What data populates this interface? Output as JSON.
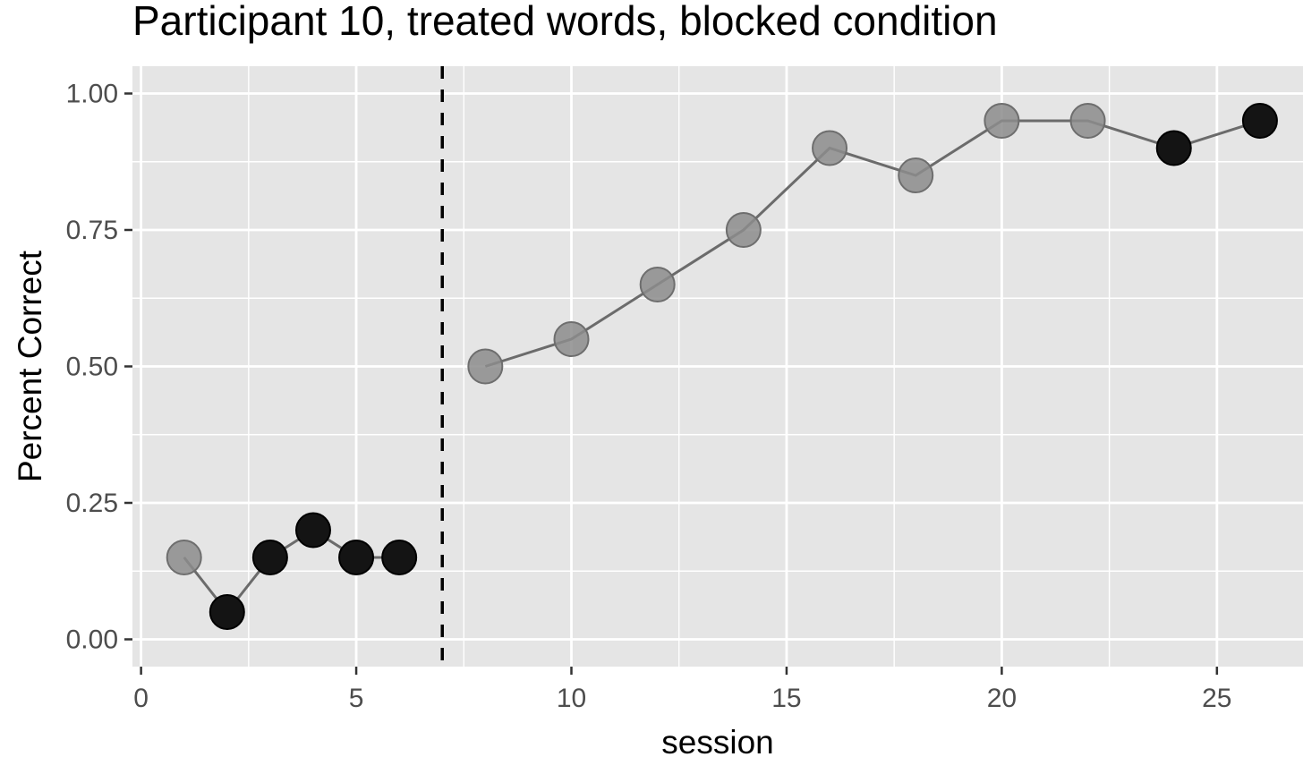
{
  "chart_data": {
    "type": "line",
    "title": "Participant 10, treated words, blocked condition",
    "xlabel": "session",
    "ylabel": "Percent Correct",
    "xlim": [
      -0.2,
      27.0
    ],
    "ylim": [
      -0.05,
      1.05
    ],
    "x_ticks": [
      0,
      5,
      10,
      15,
      20,
      25
    ],
    "x_tick_labels": [
      "0",
      "5",
      "10",
      "15",
      "20",
      "25"
    ],
    "y_ticks": [
      0.0,
      0.25,
      0.5,
      0.75,
      1.0
    ],
    "y_tick_labels": [
      "0.00",
      "0.25",
      "0.50",
      "0.75",
      "1.00"
    ],
    "grid": true,
    "panel_background": "#e5e5e5",
    "vline": {
      "x": 7,
      "style": "dashed",
      "color": "#000000"
    },
    "segments": [
      {
        "x": [
          1,
          2,
          3,
          4,
          5,
          6
        ],
        "y": [
          0.15,
          0.05,
          0.15,
          0.2,
          0.15,
          0.15
        ],
        "point_shade": [
          "grey",
          "black",
          "black",
          "black",
          "black",
          "black"
        ]
      },
      {
        "x": [
          8,
          10,
          12,
          14,
          16,
          18,
          20,
          22,
          24,
          26
        ],
        "y": [
          0.5,
          0.55,
          0.65,
          0.75,
          0.9,
          0.85,
          0.95,
          0.95,
          0.9,
          0.95
        ],
        "point_shade": [
          "grey",
          "grey",
          "grey",
          "grey",
          "grey",
          "grey",
          "grey",
          "grey",
          "black",
          "black"
        ]
      }
    ],
    "colors": {
      "grey_point": "#8c8c8c",
      "black_point": "#141414",
      "line": "#6b6b6b"
    }
  }
}
